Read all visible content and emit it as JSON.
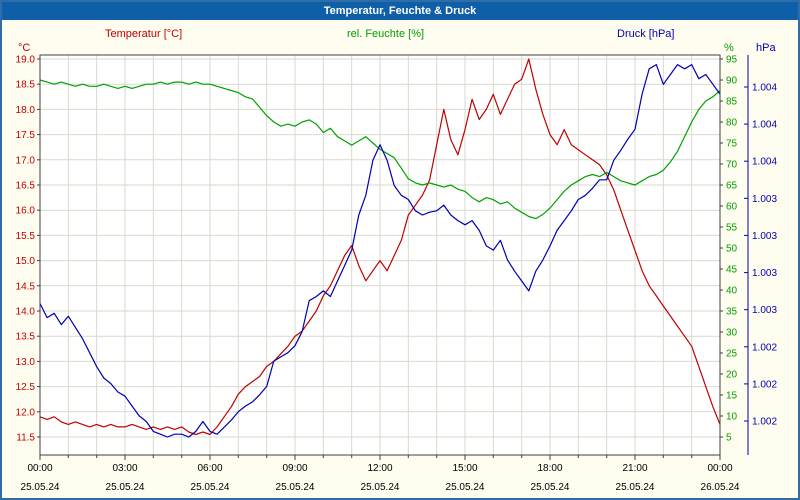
{
  "window": {
    "title": "Temperatur, Feuchte & Druck"
  },
  "colors": {
    "titlebar": "#0E5FA8",
    "frame_border": "#2E6DA8",
    "background": "#FFFDF0",
    "plot_background": "#FFFFFF",
    "grid": "#D9D9CC",
    "plot_border": "#404040",
    "axis_text": "#000000",
    "temperature": "#C00000",
    "humidity": "#00A000",
    "pressure": "#0000B0"
  },
  "chart_data": {
    "type": "line",
    "title": "Temperatur, Feuchte & Druck",
    "x": {
      "tick_labels": [
        "00:00",
        "03:00",
        "06:00",
        "09:00",
        "12:00",
        "15:00",
        "18:00",
        "21:00",
        "00:00"
      ],
      "date_labels": [
        "25.05.24",
        "25.05.24",
        "25.05.24",
        "25.05.24",
        "25.05.24",
        "25.05.24",
        "25.05.24",
        "25.05.24",
        "26.05.24"
      ],
      "hours_span": 24,
      "sample_interval_minutes": 15
    },
    "axes": {
      "left": {
        "unit": "°C",
        "range": [
          11.5,
          19.0
        ],
        "ticks": [
          "19.0",
          "18.5",
          "18.0",
          "17.5",
          "17.0",
          "16.5",
          "16.0",
          "15.5",
          "15.0",
          "14.5",
          "14.0",
          "13.5",
          "13.0",
          "12.5",
          "12.0",
          "11.5"
        ]
      },
      "right": {
        "unit": "%",
        "range": [
          5,
          95
        ],
        "ticks": [
          "95",
          "90",
          "85",
          "80",
          "75",
          "70",
          "65",
          "60",
          "55",
          "50",
          "45",
          "40",
          "35",
          "30",
          "25",
          "20",
          "15",
          "10",
          "5"
        ]
      },
      "far_right": {
        "unit": "hPa",
        "range": [
          1001.7,
          1004.39
        ],
        "ticks": [
          "1.004",
          "1.004",
          "1.004",
          "1.003",
          "1.003",
          "1.003",
          "1.003",
          "1.002",
          "1.002",
          "1.002"
        ]
      }
    },
    "series": [
      {
        "id": "temperature",
        "name": "Temperatur",
        "legend": "Temperatur [°C]",
        "unit": "°C",
        "axis": "left",
        "color": "#C00000",
        "values": [
          11.9,
          11.85,
          11.9,
          11.8,
          11.75,
          11.8,
          11.75,
          11.7,
          11.75,
          11.7,
          11.75,
          11.7,
          11.7,
          11.75,
          11.7,
          11.65,
          11.7,
          11.65,
          11.7,
          11.65,
          11.7,
          11.6,
          11.55,
          11.6,
          11.55,
          11.7,
          11.9,
          12.1,
          12.35,
          12.5,
          12.6,
          12.7,
          12.9,
          13.0,
          13.15,
          13.3,
          13.5,
          13.6,
          13.8,
          14.0,
          14.3,
          14.5,
          14.8,
          15.1,
          15.3,
          14.9,
          14.6,
          14.8,
          15.0,
          14.8,
          15.1,
          15.4,
          15.9,
          16.1,
          16.3,
          16.6,
          17.3,
          18.0,
          17.4,
          17.1,
          17.6,
          18.2,
          17.8,
          18.0,
          18.3,
          17.9,
          18.2,
          18.5,
          18.6,
          19.0,
          18.4,
          17.9,
          17.5,
          17.3,
          17.6,
          17.3,
          17.2,
          17.1,
          17.0,
          16.9,
          16.7,
          16.4,
          16.0,
          15.6,
          15.2,
          14.8,
          14.5,
          14.3,
          14.1,
          13.9,
          13.7,
          13.5,
          13.3,
          12.9,
          12.5,
          12.1,
          11.75
        ]
      },
      {
        "id": "humidity",
        "name": "rel. Feuchte",
        "legend": "rel. Feuchte [%]",
        "unit": "%",
        "axis": "right",
        "color": "#00A000",
        "values": [
          90,
          89.5,
          89,
          89.5,
          89,
          88.5,
          89,
          88.5,
          88.5,
          89,
          88.5,
          88,
          88.5,
          88,
          88.5,
          89,
          89,
          89.5,
          89,
          89.5,
          89.5,
          89,
          89.5,
          89,
          89,
          88.5,
          88,
          87.5,
          87,
          86,
          85.5,
          83.5,
          81.5,
          80,
          79,
          79.5,
          79,
          80,
          80.5,
          79.5,
          77.5,
          78.5,
          76.5,
          75.5,
          74.5,
          75.5,
          76.5,
          75,
          73.5,
          72.5,
          71.5,
          69,
          66.5,
          65.5,
          65,
          65.5,
          65,
          64.5,
          65,
          64,
          63.5,
          62,
          61,
          62,
          61.5,
          60.5,
          61,
          59.5,
          58.5,
          57.5,
          57,
          58,
          59.5,
          61.5,
          63.5,
          65,
          66,
          67,
          67.5,
          67,
          68,
          67,
          66,
          65.5,
          65,
          66,
          67,
          67.5,
          68.5,
          70.5,
          73,
          76.5,
          80,
          83,
          85,
          86,
          87.5
        ]
      },
      {
        "id": "pressure",
        "name": "Druck",
        "legend": "Druck [hPa]",
        "unit": "hPa",
        "axis": "far_right",
        "color": "#0000B0",
        "values": [
          1002.65,
          1002.55,
          1002.58,
          1002.5,
          1002.56,
          1002.48,
          1002.4,
          1002.3,
          1002.2,
          1002.12,
          1002.08,
          1002.02,
          1001.99,
          1001.92,
          1001.85,
          1001.81,
          1001.74,
          1001.72,
          1001.7,
          1001.72,
          1001.72,
          1001.7,
          1001.74,
          1001.81,
          1001.74,
          1001.72,
          1001.77,
          1001.82,
          1001.88,
          1001.92,
          1001.95,
          1002.0,
          1002.06,
          1002.24,
          1002.27,
          1002.3,
          1002.35,
          1002.45,
          1002.67,
          1002.7,
          1002.74,
          1002.7,
          1002.81,
          1002.92,
          1003.03,
          1003.28,
          1003.42,
          1003.67,
          1003.78,
          1003.67,
          1003.49,
          1003.42,
          1003.39,
          1003.31,
          1003.28,
          1003.3,
          1003.31,
          1003.35,
          1003.28,
          1003.24,
          1003.21,
          1003.24,
          1003.17,
          1003.06,
          1003.03,
          1003.1,
          1002.96,
          1002.88,
          1002.81,
          1002.74,
          1002.88,
          1002.96,
          1003.06,
          1003.17,
          1003.24,
          1003.31,
          1003.39,
          1003.42,
          1003.47,
          1003.53,
          1003.53,
          1003.67,
          1003.74,
          1003.82,
          1003.89,
          1004.14,
          1004.32,
          1004.35,
          1004.21,
          1004.28,
          1004.35,
          1004.32,
          1004.35,
          1004.25,
          1004.28,
          1004.21,
          1004.14
        ]
      }
    ]
  }
}
